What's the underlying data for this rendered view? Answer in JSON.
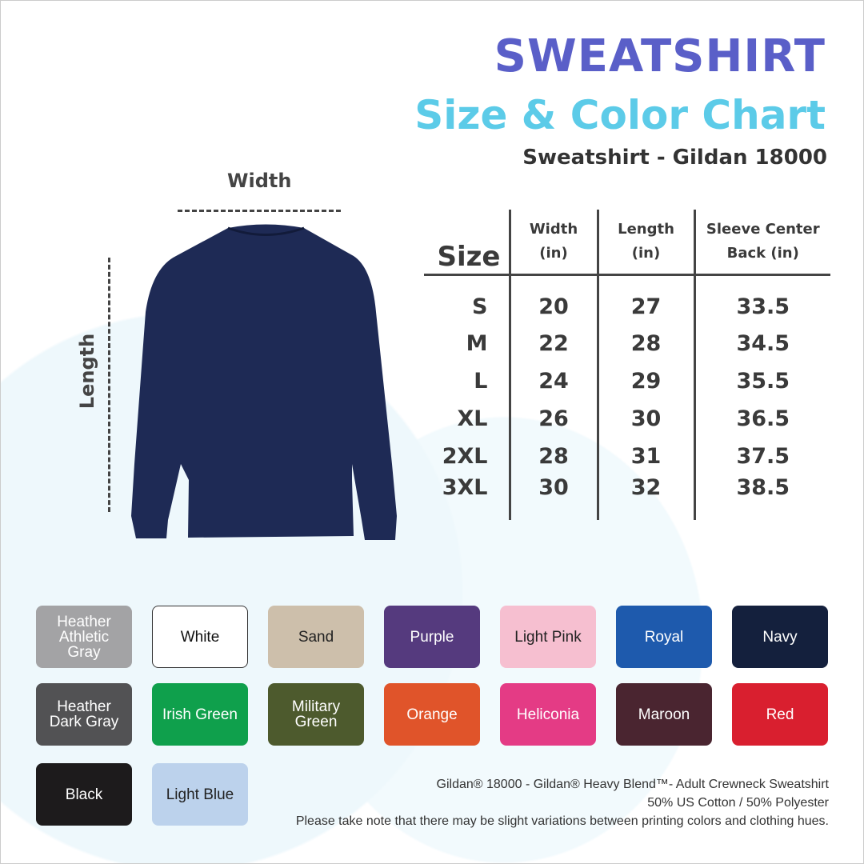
{
  "title": "SWEATSHIRT",
  "subtitle": "Size & Color Chart",
  "model": "Sweatshirt - Gildan 18000",
  "diagram": {
    "width_label": "Width",
    "length_label": "Length",
    "shirt_color": "#1e2a55"
  },
  "table": {
    "headers": [
      "Size",
      "Width\n(in)",
      "Length\n(in)",
      "Sleeve Center\nBack (in)"
    ],
    "rows": [
      [
        "S",
        "20",
        "27",
        "33.5"
      ],
      [
        "M",
        "22",
        "28",
        "34.5"
      ],
      [
        "L",
        "24",
        "29",
        "35.5"
      ],
      [
        "XL",
        "26",
        "30",
        "36.5"
      ],
      [
        "2XL",
        "28",
        "31",
        "37.5"
      ],
      [
        "3XL",
        "30",
        "32",
        "38.5"
      ]
    ]
  },
  "colors": [
    {
      "name": "Heather\nAthletic\nGray",
      "hex": "#a3a3a5",
      "text": "#ffffff"
    },
    {
      "name": "White",
      "hex": "#ffffff",
      "text": "#111111"
    },
    {
      "name": "Sand",
      "hex": "#cdbfab",
      "text": "#222222"
    },
    {
      "name": "Purple",
      "hex": "#553a7e",
      "text": "#ffffff"
    },
    {
      "name": "Light Pink",
      "hex": "#f6bfd0",
      "text": "#222222"
    },
    {
      "name": "Royal",
      "hex": "#1e5aad",
      "text": "#ffffff"
    },
    {
      "name": "Navy",
      "hex": "#14203d",
      "text": "#ffffff"
    },
    {
      "name": "Heather\nDark Gray",
      "hex": "#525254",
      "text": "#ffffff"
    },
    {
      "name": "Irish Green",
      "hex": "#0fa04c",
      "text": "#ffffff"
    },
    {
      "name": "Military\nGreen",
      "hex": "#4d5a2d",
      "text": "#ffffff"
    },
    {
      "name": "Orange",
      "hex": "#e0542a",
      "text": "#ffffff"
    },
    {
      "name": "Heliconia",
      "hex": "#e43b85",
      "text": "#ffffff"
    },
    {
      "name": "Maroon",
      "hex": "#4a2530",
      "text": "#ffffff"
    },
    {
      "name": "Red",
      "hex": "#d91f2f",
      "text": "#ffffff"
    },
    {
      "name": "Black",
      "hex": "#1d1b1c",
      "text": "#ffffff"
    },
    {
      "name": "Light Blue",
      "hex": "#bcd2ec",
      "text": "#222222"
    }
  ],
  "footer": [
    "Gildan® 18000 - Gildan® Heavy Blend™-  Adult Crewneck Sweatshirt",
    "50% US Cotton / 50% Polyester",
    "Please take note that there may be slight variations between printing colors and clothing hues."
  ]
}
